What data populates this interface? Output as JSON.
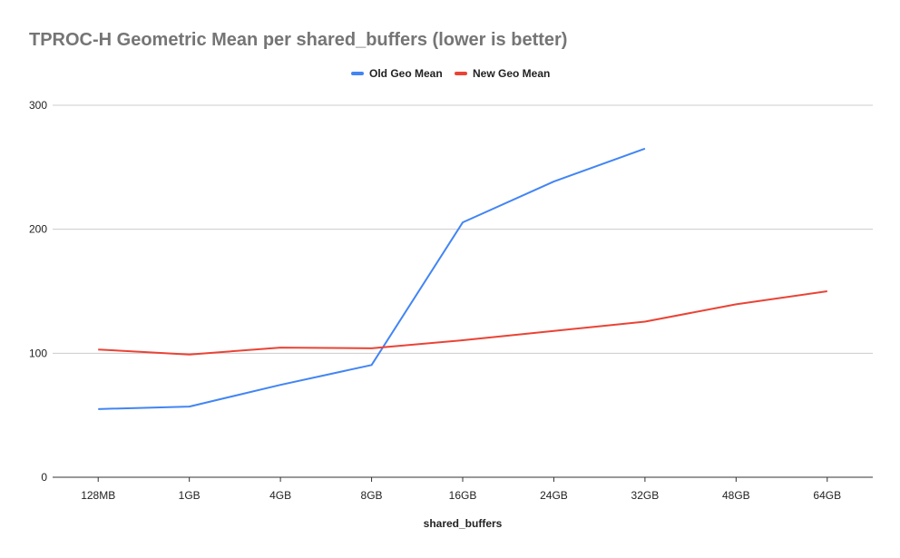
{
  "chart_data": {
    "type": "line",
    "title": "TPROC-H Geometric Mean per shared_buffers (lower is better)",
    "xlabel": "shared_buffers",
    "ylabel": "",
    "categories": [
      "128MB",
      "1GB",
      "4GB",
      "8GB",
      "16GB",
      "24GB",
      "32GB",
      "48GB",
      "64GB"
    ],
    "ylim": [
      0,
      300
    ],
    "yticks": [
      0,
      100,
      200,
      300
    ],
    "grid": true,
    "legend_position": "top",
    "series": [
      {
        "name": "Old Geo Mean",
        "color": "#4285f4",
        "values": [
          55,
          57,
          74.5,
          90.5,
          205.5,
          238.5,
          265,
          null,
          null
        ]
      },
      {
        "name": "New Geo Mean",
        "color": "#ea4335",
        "values": [
          103,
          99,
          104.5,
          104,
          110.5,
          118,
          125.5,
          139.5,
          150
        ]
      }
    ]
  }
}
